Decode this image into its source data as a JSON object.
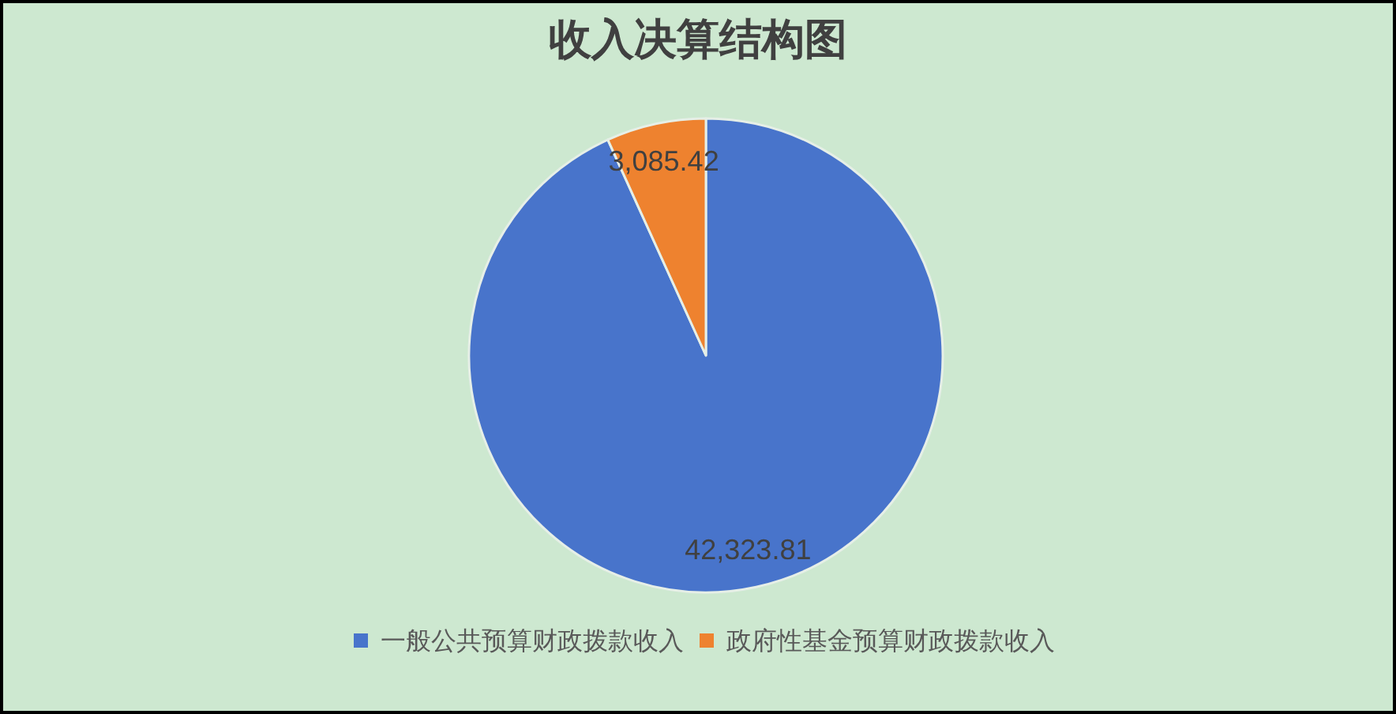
{
  "chart_data": {
    "type": "pie",
    "title": "收入决算结构图",
    "categories": [
      "一般公共预算财政拨款收入",
      "政府性基金预算财政拨款收入"
    ],
    "values": [
      42323.81,
      3085.42
    ],
    "colors": [
      "#4874cb",
      "#ee822f"
    ],
    "value_labels": [
      "42,323.81",
      "3,085.42"
    ],
    "legend": "bottom"
  }
}
